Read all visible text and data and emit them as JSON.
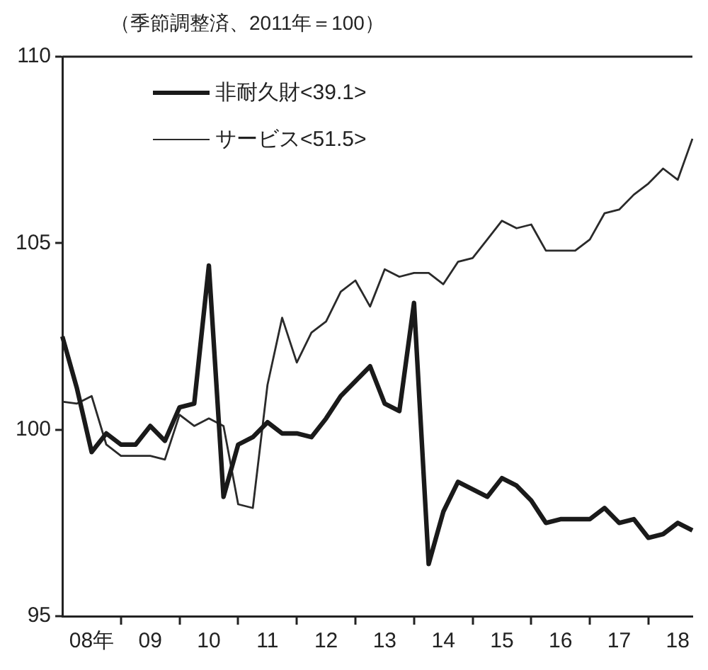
{
  "chart_data": {
    "type": "line",
    "subtitle": "（季節調整済、2011年＝100）",
    "categories": [
      null,
      null,
      "08年",
      null,
      null,
      null,
      "09",
      null,
      null,
      null,
      "10",
      null,
      null,
      null,
      "11",
      null,
      null,
      null,
      "12",
      null,
      null,
      null,
      "13",
      null,
      null,
      null,
      "14",
      null,
      null,
      null,
      "15",
      null,
      null,
      null,
      "16",
      null,
      null,
      null,
      "17",
      null,
      null,
      null,
      "18",
      null
    ],
    "series": [
      {
        "name": "非耐久財<39.1>",
        "color": "#1a1a1a",
        "values": [
          102.5,
          101.1,
          99.4,
          99.9,
          99.6,
          99.6,
          100.1,
          99.7,
          100.6,
          100.7,
          104.4,
          98.2,
          99.6,
          99.8,
          100.2,
          99.9,
          99.9,
          99.8,
          100.3,
          100.9,
          101.3,
          101.7,
          100.7,
          100.5,
          103.4,
          96.4,
          97.8,
          98.6,
          98.4,
          98.2,
          98.7,
          98.5,
          98.1,
          97.5,
          97.6,
          97.6,
          97.6,
          97.9,
          97.5,
          97.6,
          97.1,
          97.2,
          97.5,
          97.3
        ]
      },
      {
        "name": "サービス<51.5>",
        "color": "#2a2a2a",
        "values": [
          100.75,
          100.7,
          100.9,
          99.6,
          99.3,
          99.3,
          99.3,
          99.2,
          100.4,
          100.1,
          100.3,
          100.1,
          98.0,
          97.9,
          101.2,
          103.0,
          101.8,
          102.6,
          102.9,
          103.7,
          104.0,
          103.3,
          104.3,
          104.1,
          104.2,
          104.2,
          103.9,
          104.5,
          104.6,
          105.1,
          105.6,
          105.4,
          105.5,
          104.8,
          104.8,
          104.8,
          105.1,
          105.8,
          105.9,
          106.3,
          106.6,
          107.0,
          106.7,
          107.8
        ]
      }
    ],
    "ylim": [
      95,
      110
    ],
    "yticks": [
      95,
      100,
      105,
      110
    ],
    "grid": false,
    "legend": "top left",
    "marker": "none",
    "line_style": "solid"
  }
}
